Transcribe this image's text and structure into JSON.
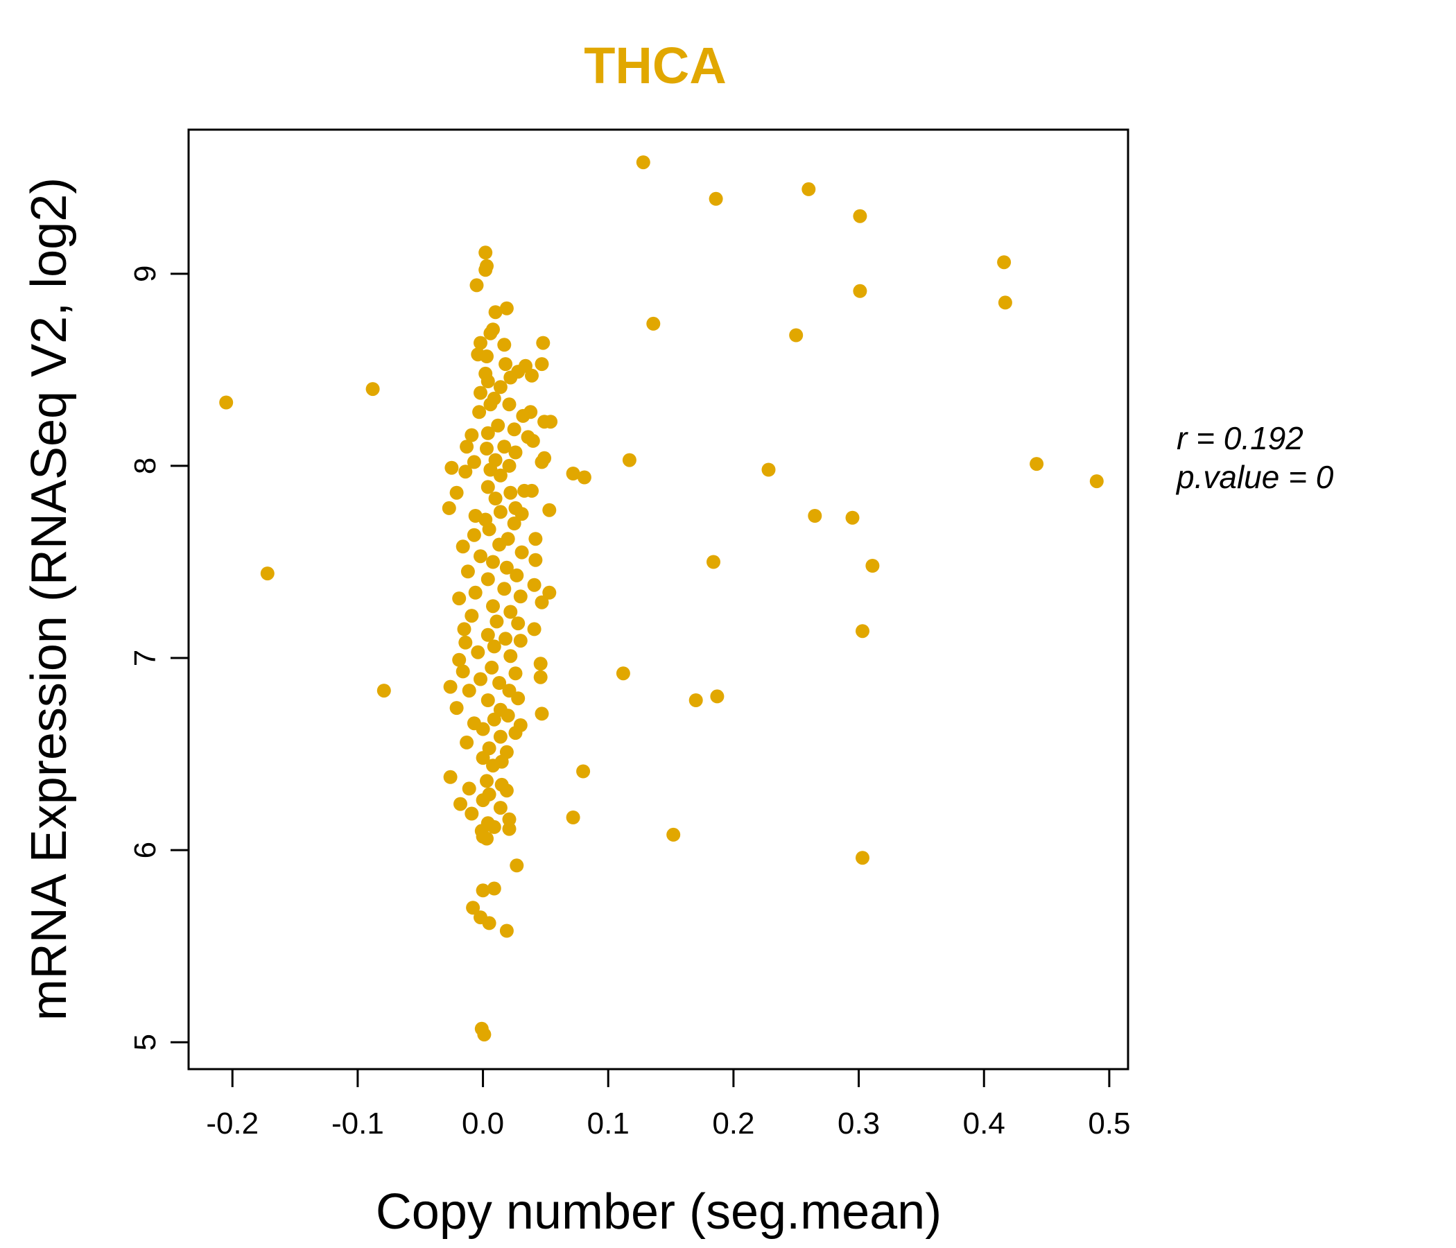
{
  "colors": {
    "accent": "#E1A700",
    "axis": "#000000",
    "background": "#FFFFFF"
  },
  "chart_data": {
    "type": "scatter",
    "title": "THCA",
    "xlabel": "Copy number (seg.mean)",
    "ylabel": "mRNA Expression (RNASeq V2, log2)",
    "xlim": [
      -0.235,
      0.515
    ],
    "ylim": [
      4.86,
      9.75
    ],
    "x_ticks": [
      -0.2,
      -0.1,
      0.0,
      0.1,
      0.2,
      0.3,
      0.4,
      0.5
    ],
    "x_tick_labels": [
      "-0.2",
      "-0.1",
      "0.0",
      "0.1",
      "0.2",
      "0.3",
      "0.4",
      "0.5"
    ],
    "y_ticks": [
      5,
      6,
      7,
      8,
      9
    ],
    "y_tick_labels": [
      "5",
      "6",
      "7",
      "8",
      "9"
    ],
    "grid": false,
    "legend": "none",
    "annotations": {
      "r_label": "r = 0.192",
      "p_label": "p.value = 0"
    },
    "points": [
      [
        0.128,
        9.58
      ],
      [
        0.186,
        9.39
      ],
      [
        0.26,
        9.44
      ],
      [
        0.301,
        9.3
      ],
      [
        0.416,
        9.06
      ],
      [
        0.417,
        8.85
      ],
      [
        0.301,
        8.91
      ],
      [
        0.136,
        8.74
      ],
      [
        0.25,
        8.68
      ],
      [
        -0.205,
        8.33
      ],
      [
        -0.088,
        8.4
      ],
      [
        0.117,
        8.03
      ],
      [
        0.228,
        7.98
      ],
      [
        0.442,
        8.01
      ],
      [
        0.49,
        7.92
      ],
      [
        0.072,
        7.96
      ],
      [
        0.081,
        7.94
      ],
      [
        0.265,
        7.74
      ],
      [
        0.295,
        7.73
      ],
      [
        0.184,
        7.5
      ],
      [
        0.311,
        7.48
      ],
      [
        -0.172,
        7.44
      ],
      [
        0.303,
        7.14
      ],
      [
        0.112,
        6.92
      ],
      [
        0.17,
        6.78
      ],
      [
        0.187,
        6.8
      ],
      [
        -0.079,
        6.83
      ],
      [
        0.08,
        6.41
      ],
      [
        0.072,
        6.17
      ],
      [
        0.152,
        6.08
      ],
      [
        0.303,
        5.96
      ],
      [
        0.002,
        9.11
      ],
      [
        0.003,
        9.04
      ],
      [
        0.002,
        9.02
      ],
      [
        -0.005,
        8.94
      ],
      [
        0.019,
        8.82
      ],
      [
        0.01,
        8.8
      ],
      [
        0.008,
        8.71
      ],
      [
        0.006,
        8.69
      ],
      [
        0.048,
        8.64
      ],
      [
        -0.002,
        8.64
      ],
      [
        0.017,
        8.63
      ],
      [
        -0.004,
        8.58
      ],
      [
        0.003,
        8.57
      ],
      [
        0.047,
        8.53
      ],
      [
        0.018,
        8.53
      ],
      [
        0.034,
        8.52
      ],
      [
        0.028,
        8.49
      ],
      [
        0.039,
        8.47
      ],
      [
        0.022,
        8.46
      ],
      [
        0.002,
        8.48
      ],
      [
        0.004,
        8.44
      ],
      [
        0.014,
        8.41
      ],
      [
        -0.002,
        8.38
      ],
      [
        0.009,
        8.35
      ],
      [
        0.006,
        8.32
      ],
      [
        0.021,
        8.32
      ],
      [
        -0.003,
        8.28
      ],
      [
        0.038,
        8.28
      ],
      [
        0.032,
        8.26
      ],
      [
        0.049,
        8.23
      ],
      [
        0.054,
        8.23
      ],
      [
        0.012,
        8.21
      ],
      [
        0.025,
        8.19
      ],
      [
        0.004,
        8.17
      ],
      [
        0.036,
        8.15
      ],
      [
        0.04,
        8.13
      ],
      [
        -0.009,
        8.16
      ],
      [
        0.017,
        8.1
      ],
      [
        -0.013,
        8.1
      ],
      [
        0.003,
        8.09
      ],
      [
        0.026,
        8.07
      ],
      [
        0.049,
        8.04
      ],
      [
        0.01,
        8.03
      ],
      [
        0.047,
        8.02
      ],
      [
        -0.007,
        8.02
      ],
      [
        -0.025,
        7.99
      ],
      [
        0.021,
        8.0
      ],
      [
        0.006,
        7.98
      ],
      [
        -0.014,
        7.97
      ],
      [
        0.014,
        7.95
      ],
      [
        0.033,
        7.87
      ],
      [
        0.039,
        7.87
      ],
      [
        0.004,
        7.89
      ],
      [
        -0.021,
        7.86
      ],
      [
        0.022,
        7.86
      ],
      [
        0.01,
        7.83
      ],
      [
        -0.027,
        7.78
      ],
      [
        0.026,
        7.78
      ],
      [
        0.031,
        7.75
      ],
      [
        0.053,
        7.77
      ],
      [
        0.014,
        7.76
      ],
      [
        -0.006,
        7.74
      ],
      [
        0.002,
        7.72
      ],
      [
        0.025,
        7.7
      ],
      [
        0.005,
        7.67
      ],
      [
        -0.007,
        7.64
      ],
      [
        0.02,
        7.62
      ],
      [
        0.042,
        7.62
      ],
      [
        0.013,
        7.59
      ],
      [
        -0.016,
        7.58
      ],
      [
        0.031,
        7.55
      ],
      [
        -0.002,
        7.53
      ],
      [
        0.042,
        7.51
      ],
      [
        0.008,
        7.5
      ],
      [
        0.019,
        7.47
      ],
      [
        -0.012,
        7.45
      ],
      [
        0.027,
        7.43
      ],
      [
        0.004,
        7.41
      ],
      [
        0.041,
        7.38
      ],
      [
        0.017,
        7.36
      ],
      [
        0.053,
        7.34
      ],
      [
        -0.006,
        7.34
      ],
      [
        0.03,
        7.32
      ],
      [
        -0.019,
        7.31
      ],
      [
        0.047,
        7.29
      ],
      [
        0.008,
        7.27
      ],
      [
        0.022,
        7.24
      ],
      [
        -0.009,
        7.22
      ],
      [
        0.011,
        7.19
      ],
      [
        0.028,
        7.18
      ],
      [
        -0.015,
        7.15
      ],
      [
        0.041,
        7.15
      ],
      [
        0.004,
        7.12
      ],
      [
        0.018,
        7.1
      ],
      [
        0.03,
        7.09
      ],
      [
        -0.014,
        7.08
      ],
      [
        0.009,
        7.06
      ],
      [
        -0.004,
        7.03
      ],
      [
        0.022,
        7.01
      ],
      [
        -0.019,
        6.99
      ],
      [
        0.046,
        6.97
      ],
      [
        0.007,
        6.95
      ],
      [
        -0.016,
        6.93
      ],
      [
        0.026,
        6.92
      ],
      [
        0.046,
        6.9
      ],
      [
        -0.002,
        6.89
      ],
      [
        0.013,
        6.87
      ],
      [
        -0.026,
        6.85
      ],
      [
        0.021,
        6.83
      ],
      [
        -0.011,
        6.83
      ],
      [
        0.028,
        6.79
      ],
      [
        0.004,
        6.78
      ],
      [
        -0.021,
        6.74
      ],
      [
        0.014,
        6.73
      ],
      [
        0.047,
        6.71
      ],
      [
        0.02,
        6.7
      ],
      [
        0.009,
        6.68
      ],
      [
        -0.007,
        6.66
      ],
      [
        0.03,
        6.65
      ],
      [
        0.0,
        6.63
      ],
      [
        0.026,
        6.61
      ],
      [
        0.014,
        6.59
      ],
      [
        -0.013,
        6.56
      ],
      [
        0.005,
        6.53
      ],
      [
        0.019,
        6.51
      ],
      [
        0.0,
        6.48
      ],
      [
        0.015,
        6.46
      ],
      [
        0.008,
        6.44
      ],
      [
        -0.026,
        6.38
      ],
      [
        0.003,
        6.36
      ],
      [
        0.015,
        6.34
      ],
      [
        0.019,
        6.31
      ],
      [
        -0.011,
        6.32
      ],
      [
        0.005,
        6.29
      ],
      [
        0.0,
        6.26
      ],
      [
        -0.018,
        6.24
      ],
      [
        0.014,
        6.22
      ],
      [
        -0.009,
        6.19
      ],
      [
        0.021,
        6.16
      ],
      [
        0.004,
        6.14
      ],
      [
        0.009,
        6.12
      ],
      [
        0.021,
        6.11
      ],
      [
        -0.001,
        6.1
      ],
      [
        0.0,
        6.07
      ],
      [
        0.003,
        6.06
      ],
      [
        0.027,
        5.92
      ],
      [
        0.0,
        5.79
      ],
      [
        0.009,
        5.8
      ],
      [
        -0.008,
        5.7
      ],
      [
        -0.002,
        5.65
      ],
      [
        0.005,
        5.62
      ],
      [
        0.019,
        5.58
      ],
      [
        -0.001,
        5.07
      ],
      [
        0.001,
        5.04
      ]
    ]
  }
}
